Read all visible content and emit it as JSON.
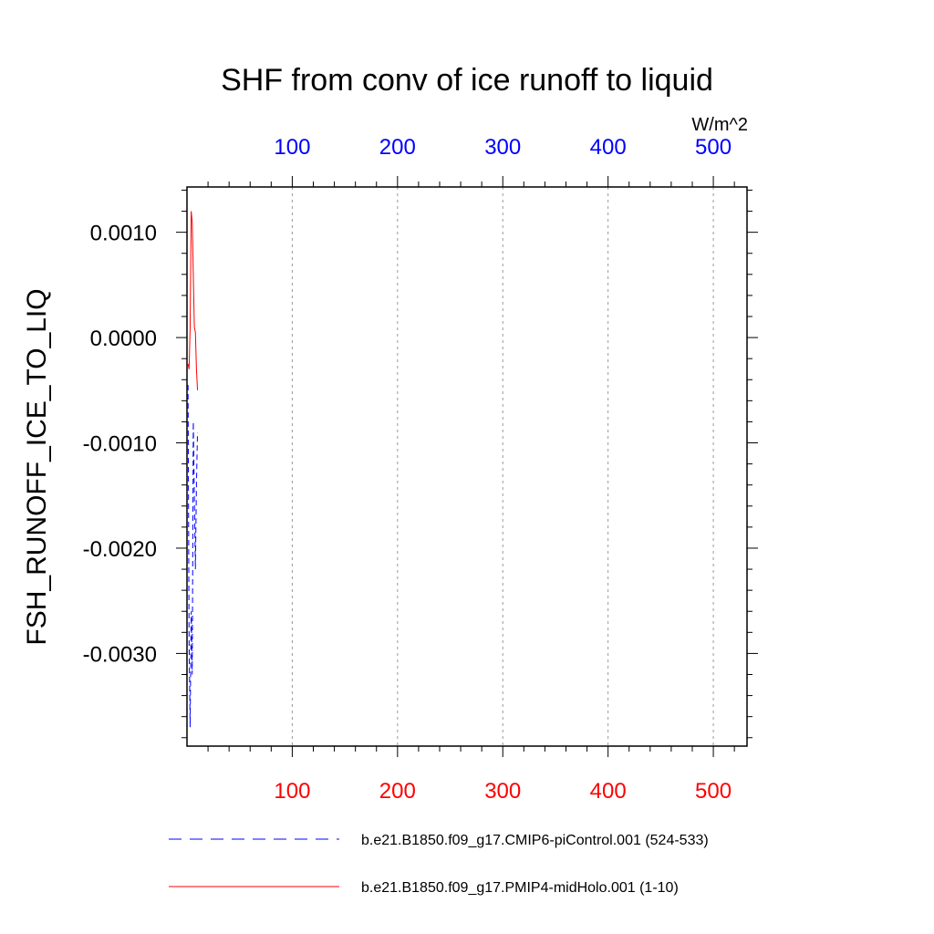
{
  "chart_data": {
    "type": "line",
    "title": "SHF from conv of ice runoff to liquid",
    "ylabel": "FSH_RUNOFF_ICE_TO_LIQ",
    "units": "W/m^2",
    "top_ticks": [
      "100",
      "200",
      "300",
      "400",
      "500"
    ],
    "bottom_ticks": [
      "100",
      "200",
      "300",
      "400",
      "500"
    ],
    "y_ticks": [
      "0.0010",
      "0.0000",
      "-0.0010",
      "-0.0020",
      "-0.0030"
    ],
    "xlim": [
      0,
      532
    ],
    "ylim": [
      -0.00388,
      0.00143
    ],
    "grid": "vertical dashed",
    "legend_placement": "below",
    "colors": {
      "top_axis": "#0000ff",
      "bottom_axis": "#ff0000"
    },
    "series": [
      {
        "name": "b.e21.B1850.f09_g17.CMIP6-piControl.001 (524-533)",
        "color": "#0000ff",
        "style": "dashed",
        "x": [
          1,
          2,
          3,
          4,
          5,
          6,
          7,
          8,
          9,
          10
        ],
        "y": [
          -0.00045,
          -0.0029,
          -0.0037,
          -0.0026,
          -0.0032,
          -0.0008,
          -0.0015,
          -0.0022,
          -0.0014,
          -0.0009
        ]
      },
      {
        "name": "b.e21.B1850.f09_g17.PMIP4-midHolo.001 (1-10)",
        "color": "#ff0000",
        "style": "solid",
        "x": [
          1,
          2,
          3,
          4,
          5,
          6,
          7,
          8,
          9,
          10
        ],
        "y": [
          -0.00025,
          -0.0003,
          0.0001,
          0.0012,
          0.0011,
          0.0006,
          0.0001,
          5e-05,
          -0.0003,
          -0.0005
        ]
      }
    ]
  }
}
